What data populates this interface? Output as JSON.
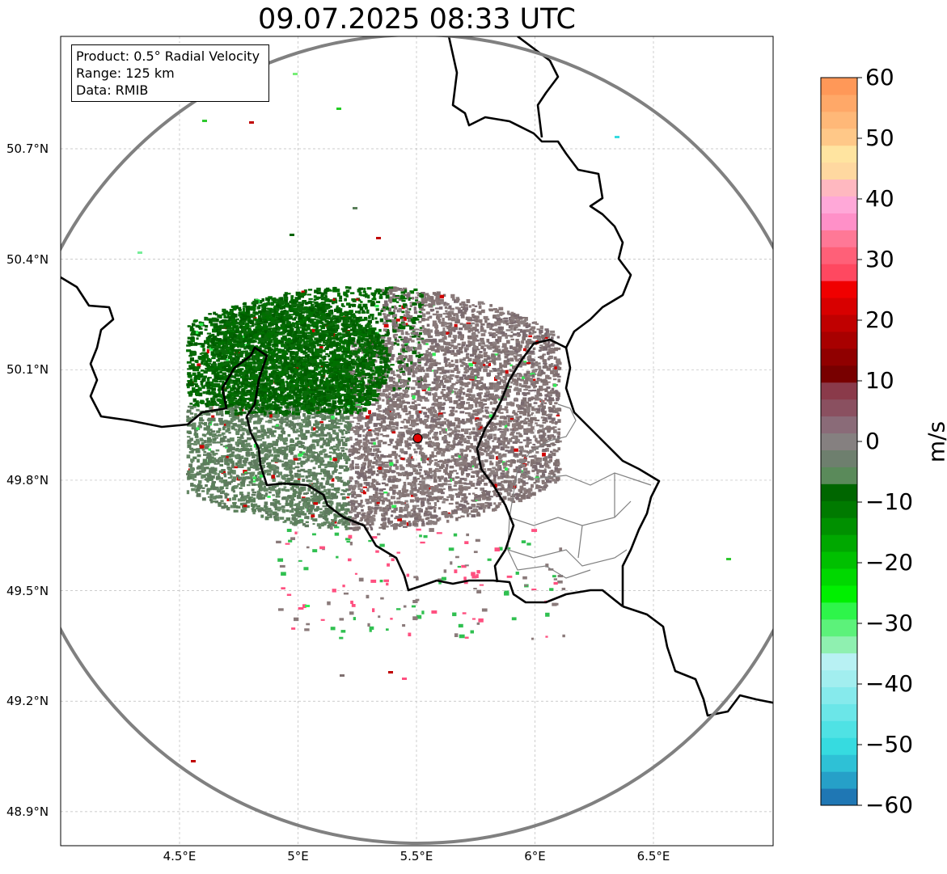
{
  "title": "09.07.2025 08:33 UTC",
  "info": {
    "product": "Product: 0.5° Radial Velocity",
    "range": "Range: 125 km",
    "source": "Data: RMIB"
  },
  "map": {
    "lon_range": [
      4.0,
      7.0
    ],
    "lat_range": [
      48.8,
      51.0
    ],
    "lat_ticks": [
      "50.7°N",
      "50.4°N",
      "50.1°N",
      "49.8°N",
      "49.5°N",
      "49.2°N",
      "48.9°N"
    ],
    "lat_values": [
      50.7,
      50.4,
      50.1,
      49.8,
      49.5,
      49.2,
      48.9
    ],
    "lon_ticks": [
      "4.5°E",
      "5°E",
      "5.5°E",
      "6°E",
      "6.5°E"
    ],
    "lon_values": [
      4.5,
      5.0,
      5.5,
      6.0,
      6.5
    ],
    "radar_site": {
      "lon": 5.505,
      "lat": 49.914
    },
    "range_ring_color": "#808080",
    "border_color": "#000000",
    "region_border_color": "#808080"
  },
  "colorbar": {
    "min": -60,
    "max": 60,
    "unit": "m/s",
    "tick_labels": [
      "60",
      "50",
      "40",
      "30",
      "20",
      "10",
      "0",
      "−10",
      "−20",
      "−30",
      "−40",
      "−50",
      "−60"
    ],
    "tick_values": [
      60,
      50,
      40,
      30,
      20,
      10,
      0,
      -10,
      -20,
      -30,
      -40,
      -50,
      -60
    ],
    "colors_bottom_to_top": [
      "#1f77b4",
      "#26a0c8",
      "#2ec1d6",
      "#36dbe0",
      "#4fe2e4",
      "#6be6e8",
      "#86eaec",
      "#a2eeef",
      "#b8f1f3",
      "#8ff0b0",
      "#5cf27a",
      "#2ef54a",
      "#00f000",
      "#00d800",
      "#00c000",
      "#00a800",
      "#009000",
      "#007a00",
      "#006600",
      "#5a8a5a",
      "#6e7f6e",
      "#858080",
      "#8a6b78",
      "#8a5060",
      "#8a3a4a",
      "#780000",
      "#900000",
      "#a80000",
      "#c00000",
      "#d80000",
      "#f00000",
      "#ff4860",
      "#ff6078",
      "#ff7896",
      "#ff90c8",
      "#ffa8d8",
      "#ffb8c0",
      "#ffd8a0",
      "#ffe4a0",
      "#ffc888",
      "#ffb878",
      "#ffa868",
      "#ff9858"
    ]
  }
}
